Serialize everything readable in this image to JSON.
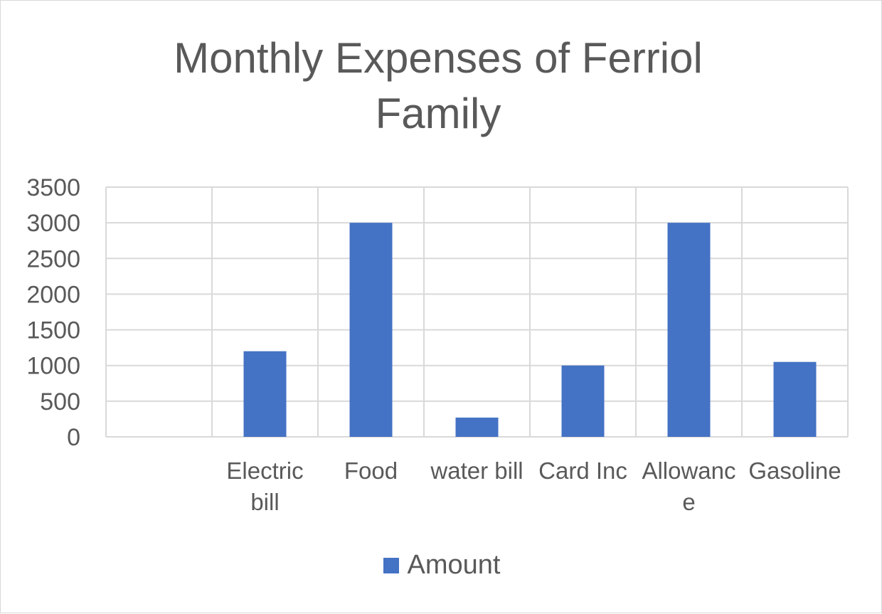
{
  "chart_data": {
    "type": "bar",
    "title_lines": [
      "Monthly Expenses of Ferriol",
      "Family"
    ],
    "categories": [
      "",
      "Electric bill",
      "Food",
      "water bill",
      "Card Inc",
      "Allowance",
      "Gasoline"
    ],
    "category_label_lines": [
      [],
      [
        "Electric",
        "bill"
      ],
      [
        "Food"
      ],
      [
        "water bill"
      ],
      [
        "Card Inc"
      ],
      [
        "Allowanc",
        "e"
      ],
      [
        "Gasoline"
      ]
    ],
    "series": [
      {
        "name": "Amount",
        "values": [
          null,
          1200,
          3000,
          270,
          1000,
          3000,
          1050
        ]
      }
    ],
    "ylim": [
      0,
      3500
    ],
    "yticks": [
      0,
      500,
      1000,
      1500,
      2000,
      2500,
      3000,
      3500
    ],
    "grid": true,
    "legend_position": "bottom",
    "xlabel": "",
    "ylabel": ""
  },
  "colors": {
    "bar": "#4472c4",
    "grid": "#d9d9d9",
    "text": "#595959"
  }
}
